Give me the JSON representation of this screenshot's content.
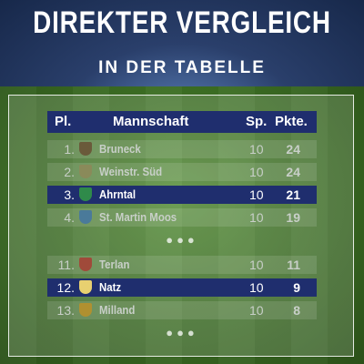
{
  "title": "DIREKTER VERGLEICH",
  "subtitle": "IN DER TABELLE",
  "table": {
    "headers": {
      "place": "Pl.",
      "team": "Mannschaft",
      "played": "Sp.",
      "points": "Pkte."
    },
    "rows": [
      {
        "place": "1.",
        "team": "Bruneck",
        "played": "10",
        "points": "24",
        "highlight": false,
        "crest_color": "#6a5a3a"
      },
      {
        "place": "2.",
        "team": "Weinstr. Süd",
        "played": "10",
        "points": "24",
        "highlight": false,
        "crest_color": "#8a8a5a"
      },
      {
        "place": "3.",
        "team": "Ahrntal",
        "played": "10",
        "points": "21",
        "highlight": true,
        "crest_color": "#2f8a4a"
      },
      {
        "place": "4.",
        "team": "St. Martin Moos",
        "played": "10",
        "points": "19",
        "highlight": false,
        "crest_color": "#4a7a9a"
      },
      {
        "place": "11.",
        "team": "Terlan",
        "played": "10",
        "points": "11",
        "highlight": false,
        "crest_color": "#a04a3a"
      },
      {
        "place": "12.",
        "team": "Natz",
        "played": "10",
        "points": "9",
        "highlight": true,
        "crest_color": "#e8d070"
      },
      {
        "place": "13.",
        "team": "Milland",
        "played": "10",
        "points": "8",
        "highlight": false,
        "crest_color": "#b09030"
      }
    ]
  },
  "colors": {
    "accent": "#1f2e6e"
  }
}
